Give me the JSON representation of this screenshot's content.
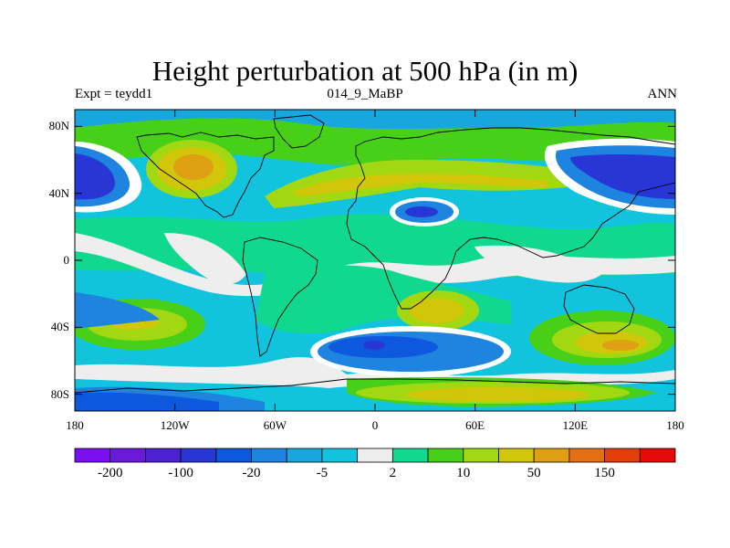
{
  "title": "Height perturbation at 500 hPa (in m)",
  "left_string": "Expt = teydd1",
  "center_string": "014_9_MaBP",
  "right_string": "ANN",
  "lat_ticks": [
    {
      "value": 80,
      "label": "80N"
    },
    {
      "value": 40,
      "label": "40N"
    },
    {
      "value": 0,
      "label": "0"
    },
    {
      "value": -40,
      "label": "40S"
    },
    {
      "value": -80,
      "label": "80S"
    }
  ],
  "lon_ticks": [
    {
      "value": -180,
      "label": "180"
    },
    {
      "value": -120,
      "label": "120W"
    },
    {
      "value": -60,
      "label": "60W"
    },
    {
      "value": 0,
      "label": "0"
    },
    {
      "value": 60,
      "label": "60E"
    },
    {
      "value": 120,
      "label": "120E"
    },
    {
      "value": 180,
      "label": "180"
    }
  ],
  "colorbar": {
    "colors": [
      "#7a0ff0",
      "#6a1ad8",
      "#4a22d2",
      "#2836d6",
      "#0d58dc",
      "#1e84e0",
      "#17a6de",
      "#12c3de",
      "#eeeeee",
      "#10d88e",
      "#48d018",
      "#a2d812",
      "#d2c60a",
      "#df9f12",
      "#e46e12",
      "#e43e0c",
      "#e40a0a"
    ],
    "labels": [
      {
        "after_box": 1,
        "text": "-200"
      },
      {
        "after_box": 3,
        "text": "-100"
      },
      {
        "after_box": 5,
        "text": "-20"
      },
      {
        "after_box": 7,
        "text": "-5"
      },
      {
        "after_box": 9,
        "text": "2"
      },
      {
        "after_box": 11,
        "text": "10"
      },
      {
        "after_box": 13,
        "text": "50"
      },
      {
        "after_box": 15,
        "text": "150"
      }
    ]
  }
}
